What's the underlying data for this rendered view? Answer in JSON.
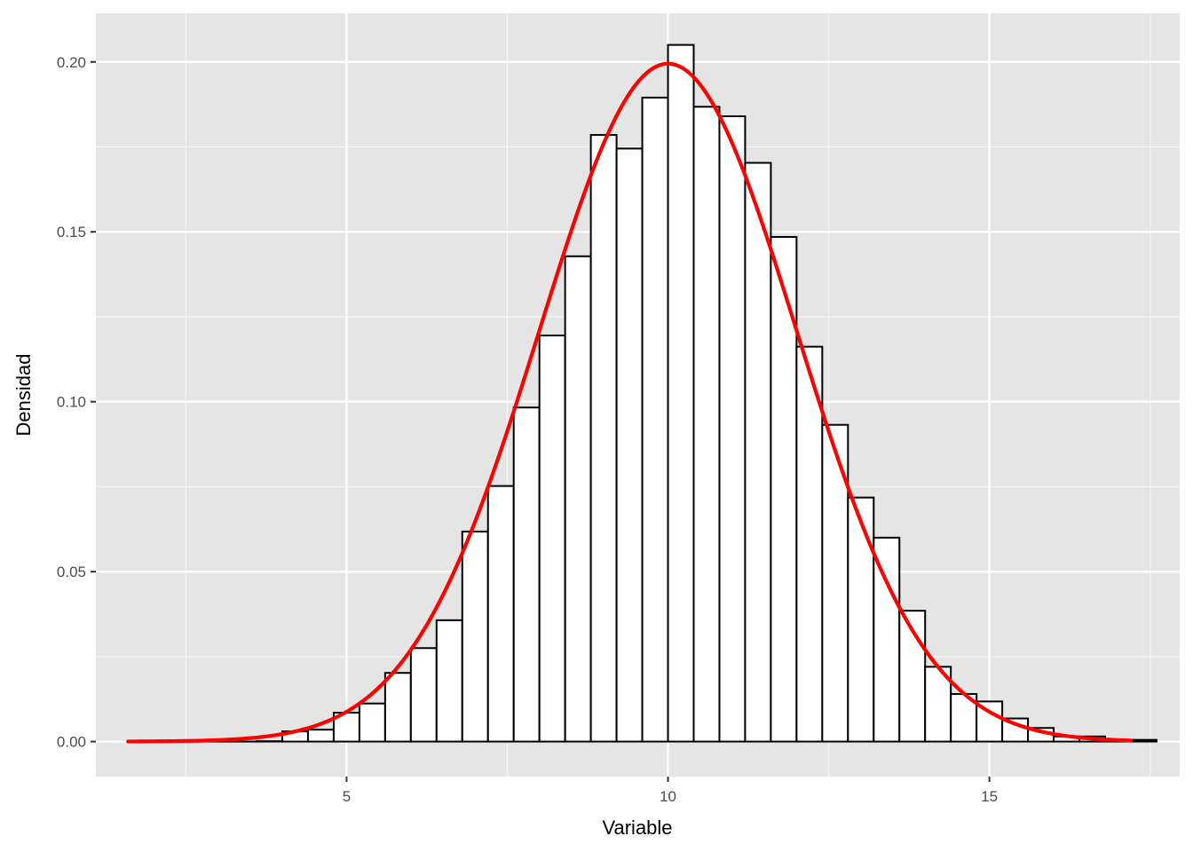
{
  "chart_data": {
    "type": "bar",
    "title": "",
    "xlabel": "Variable",
    "ylabel": "Densidad",
    "xlim": [
      1.1,
      17.96
    ],
    "ylim": [
      -0.0103,
      0.2143
    ],
    "x_ticks": [
      5,
      10,
      15
    ],
    "x_minor_ticks": [
      2.5,
      7.5,
      12.5,
      17.5
    ],
    "y_ticks": [
      0.0,
      0.05,
      0.1,
      0.15,
      0.2
    ],
    "y_tick_labels": [
      "0.00",
      "0.05",
      "0.10",
      "0.15",
      "0.20"
    ],
    "y_minor_ticks": [
      0.025,
      0.075,
      0.125,
      0.175
    ],
    "grid": true,
    "bin_width": 0.4,
    "bins": {
      "x_start": [
        1.6,
        2.0,
        2.4,
        2.8,
        3.2,
        3.6,
        4.0,
        4.4,
        4.8,
        5.2,
        5.6,
        6.0,
        6.4,
        6.8,
        7.2,
        7.6,
        8.0,
        8.4,
        8.8,
        9.2,
        9.6,
        10.0,
        10.4,
        10.8,
        11.2,
        11.6,
        12.0,
        12.4,
        12.8,
        13.2,
        13.6,
        14.0,
        14.4,
        14.8,
        15.2,
        15.6,
        16.0,
        16.4,
        16.8,
        17.2
      ],
      "density": [
        0.0001,
        0,
        0,
        0,
        0,
        0.0001,
        0.003,
        0.0035,
        0.0085,
        0.0112,
        0.0202,
        0.0275,
        0.0357,
        0.0618,
        0.0752,
        0.0983,
        0.1195,
        0.1428,
        0.1785,
        0.1745,
        0.1895,
        0.205,
        0.1868,
        0.184,
        0.1703,
        0.1485,
        0.1162,
        0.0932,
        0.0718,
        0.06,
        0.0385,
        0.022,
        0.014,
        0.0118,
        0.0068,
        0.004,
        0.0015,
        0.0015,
        0.0005,
        0.0005
      ]
    },
    "series": [
      {
        "type": "line",
        "mean": 10,
        "sd": 2,
        "x_range": [
          1.6,
          17.2
        ],
        "color": "#ff0000"
      }
    ],
    "colors": {
      "panel_background": "#e5e5e5",
      "grid_major": "#ffffff",
      "bar_fill": "#ffffff",
      "bar_outline": "#000000",
      "curve": "#ff0000"
    }
  }
}
